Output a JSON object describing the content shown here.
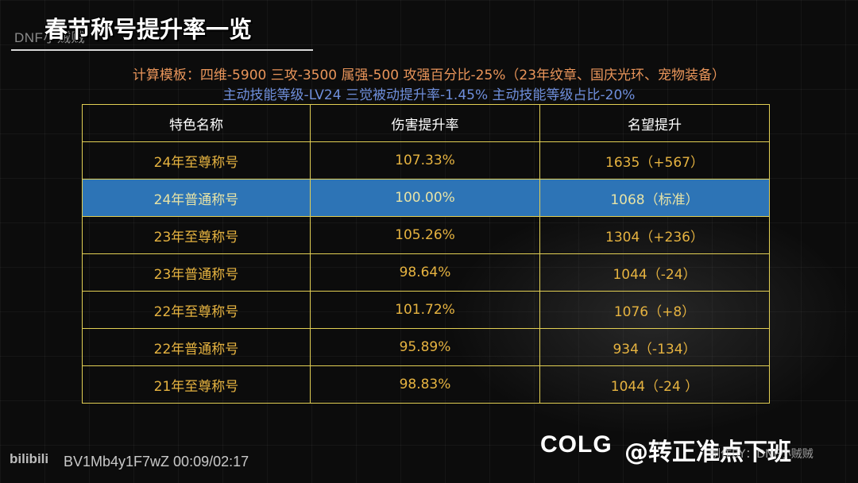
{
  "header": {
    "watermark": "DNF小贼贼",
    "title": "春节称号提升率一览"
  },
  "subtitles": {
    "line1": "计算模板：四维-5900 三攻-3500 属强-500 攻强百分比-25%（23年纹章、国庆光环、宠物装备）",
    "line2": "主动技能等级-LV24 三觉被动提升率-1.45% 主动技能等级占比-20%"
  },
  "table": {
    "headers": [
      "特色名称",
      "伤害提升率",
      "名望提升"
    ],
    "rows": [
      {
        "name": "24年至尊称号",
        "rate": "107.33%",
        "fame": "1635（+567）"
      },
      {
        "name": "24年普通称号",
        "rate": "100.00%",
        "fame": "1068（标准）"
      },
      {
        "name": "23年至尊称号",
        "rate": "105.26%",
        "fame": "1304（+236）"
      },
      {
        "name": "23年普通称号",
        "rate": "98.64%",
        "fame": "1044（-24）"
      },
      {
        "name": "22年至尊称号",
        "rate": "101.72%",
        "fame": "1076（+8）"
      },
      {
        "name": "22年普通称号",
        "rate": "95.89%",
        "fame": "934（-134）"
      },
      {
        "name": "21年至尊称号",
        "rate": "98.83%",
        "fame": "1044（-24 ）"
      }
    ],
    "highlight_row": 1,
    "colors": {
      "border": "#e2cf54",
      "highlight": "#2d74b6",
      "cell_text": "#e6b340"
    }
  },
  "footer": {
    "bili_logo": "bilibili",
    "video_code": "BV1Mb4y1F7wZ 00:09/02:17",
    "colg_logo": "COLG",
    "uploader": "@转正准点下班",
    "maker": "制作BY：DNF小贼贼"
  }
}
